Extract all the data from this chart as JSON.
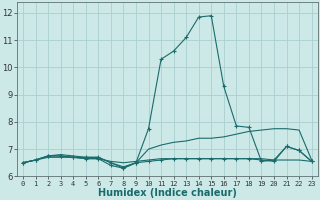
{
  "xlabel": "Humidex (Indice chaleur)",
  "xlim": [
    -0.5,
    23.5
  ],
  "ylim": [
    6.0,
    12.4
  ],
  "yticks": [
    6,
    7,
    8,
    9,
    10,
    11,
    12
  ],
  "xticks": [
    0,
    1,
    2,
    3,
    4,
    5,
    6,
    7,
    8,
    9,
    10,
    11,
    12,
    13,
    14,
    15,
    16,
    17,
    18,
    19,
    20,
    21,
    22,
    23
  ],
  "background_color": "#cce9e8",
  "grid_color": "#aacfcf",
  "line_color": "#1a6b6b",
  "series": [
    {
      "x": [
        0,
        1,
        2,
        3,
        4,
        5,
        6,
        7,
        8,
        9,
        10,
        11,
        12,
        13,
        14,
        15,
        16,
        17,
        18,
        19,
        20,
        21,
        22,
        23
      ],
      "y": [
        6.5,
        6.6,
        6.7,
        6.7,
        6.7,
        6.65,
        6.65,
        6.55,
        6.5,
        6.55,
        6.6,
        6.65,
        6.65,
        6.65,
        6.65,
        6.65,
        6.65,
        6.65,
        6.65,
        6.65,
        6.6,
        6.6,
        6.6,
        6.55
      ],
      "marker": null
    },
    {
      "x": [
        0,
        1,
        2,
        3,
        4,
        5,
        6,
        7,
        8,
        9,
        10,
        11,
        12,
        13,
        14,
        15,
        16,
        17,
        18,
        19,
        20,
        21,
        22,
        23
      ],
      "y": [
        6.5,
        6.6,
        6.75,
        6.8,
        6.75,
        6.7,
        6.7,
        6.5,
        6.35,
        6.5,
        7.0,
        7.15,
        7.25,
        7.3,
        7.4,
        7.4,
        7.45,
        7.55,
        7.65,
        7.7,
        7.75,
        7.75,
        7.7,
        6.6
      ],
      "marker": null
    },
    {
      "x": [
        0,
        1,
        2,
        3,
        4,
        5,
        6,
        7,
        8,
        9,
        10,
        11,
        12,
        13,
        14,
        15,
        16,
        17,
        18,
        19,
        20,
        21,
        22,
        23
      ],
      "y": [
        6.5,
        6.6,
        6.75,
        6.75,
        6.7,
        6.65,
        6.65,
        6.4,
        6.3,
        6.5,
        6.55,
        6.6,
        6.65,
        6.65,
        6.65,
        6.65,
        6.65,
        6.65,
        6.65,
        6.6,
        6.55,
        7.1,
        6.95,
        6.55
      ],
      "marker": "+"
    },
    {
      "x": [
        0,
        1,
        2,
        3,
        4,
        5,
        6,
        7,
        8,
        9,
        10,
        11,
        12,
        13,
        14,
        15,
        16,
        17,
        18,
        19,
        20,
        21,
        22,
        23
      ],
      "y": [
        6.5,
        6.6,
        6.75,
        6.75,
        6.7,
        6.7,
        6.7,
        6.5,
        6.3,
        6.5,
        7.75,
        10.3,
        10.6,
        11.1,
        11.85,
        11.9,
        9.3,
        7.85,
        7.8,
        6.55,
        6.6,
        7.1,
        6.95,
        6.55
      ],
      "marker": "+"
    }
  ]
}
